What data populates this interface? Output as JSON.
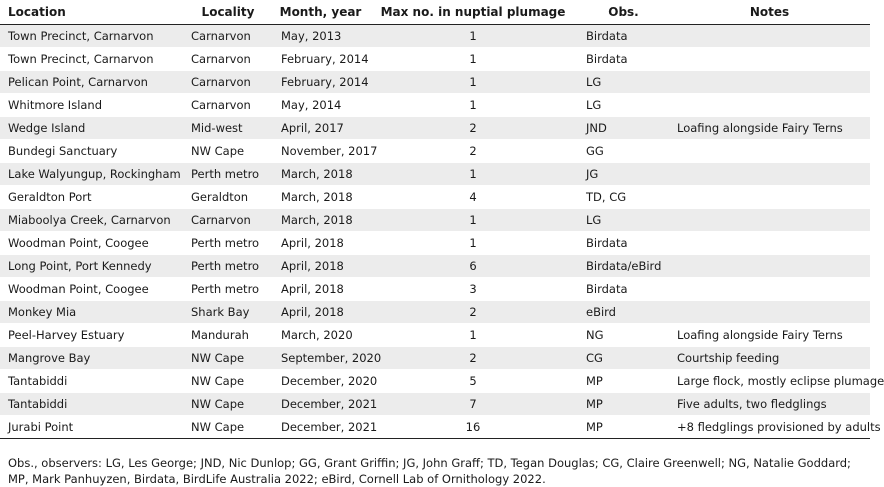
{
  "table": {
    "headers": [
      "Location",
      "Locality",
      "Month, year",
      "Max no. in nuptial plumage",
      "Obs.",
      "Notes"
    ],
    "rows": [
      [
        "Town Precinct, Carnarvon",
        "Carnarvon",
        "May, 2013",
        "1",
        "Birdata",
        ""
      ],
      [
        "Town Precinct, Carnarvon",
        "Carnarvon",
        "February, 2014",
        "1",
        "Birdata",
        ""
      ],
      [
        "Pelican Point, Carnarvon",
        "Carnarvon",
        "February, 2014",
        "1",
        "LG",
        ""
      ],
      [
        "Whitmore Island",
        "Carnarvon",
        "May, 2014",
        "1",
        "LG",
        ""
      ],
      [
        "Wedge Island",
        "Mid-west",
        "April, 2017",
        "2",
        "JND",
        "Loafing alongside Fairy Terns"
      ],
      [
        "Bundegi Sanctuary",
        "NW Cape",
        "November, 2017",
        "2",
        "GG",
        ""
      ],
      [
        "Lake Walyungup, Rockingham",
        "Perth metro",
        "March, 2018",
        "1",
        "JG",
        ""
      ],
      [
        "Geraldton Port",
        "Geraldton",
        "March, 2018",
        "4",
        "TD, CG",
        ""
      ],
      [
        "Miaboolya Creek, Carnarvon",
        "Carnarvon",
        "March, 2018",
        "1",
        "LG",
        ""
      ],
      [
        "Woodman Point, Coogee",
        "Perth metro",
        "April, 2018",
        "1",
        "Birdata",
        ""
      ],
      [
        "Long Point, Port Kennedy",
        "Perth metro",
        "April, 2018",
        "6",
        "Birdata/eBird",
        ""
      ],
      [
        "Woodman Point, Coogee",
        "Perth metro",
        "April, 2018",
        "3",
        "Birdata",
        ""
      ],
      [
        "Monkey Mia",
        "Shark Bay",
        "April, 2018",
        "2",
        "eBird",
        ""
      ],
      [
        "Peel-Harvey Estuary",
        "Mandurah",
        "March, 2020",
        "1",
        "NG",
        "Loafing alongside Fairy Terns"
      ],
      [
        "Mangrove Bay",
        "NW Cape",
        "September, 2020",
        "2",
        "CG",
        "Courtship feeding"
      ],
      [
        "Tantabiddi",
        "NW Cape",
        "December, 2020",
        "5",
        "MP",
        "Large flock, mostly eclipse plumage"
      ],
      [
        "Tantabiddi",
        "NW Cape",
        "December, 2021",
        "7",
        "MP",
        "Five adults, two fledglings"
      ],
      [
        "Jurabi Point",
        "NW Cape",
        "December, 2021",
        "16",
        "MP",
        "+8 fledglings provisioned by adults"
      ]
    ]
  },
  "footnote": "Obs., observers: LG, Les George; JND, Nic Dunlop; GG, Grant Griffin; JG, John Graff; TD, Tegan Douglas; CG, Claire Greenwell; NG, Natalie Goddard; MP, Mark Panhuyzen, Birdata, BirdLife Australia 2022; eBird, Cornell Lab of Ornithology 2022."
}
